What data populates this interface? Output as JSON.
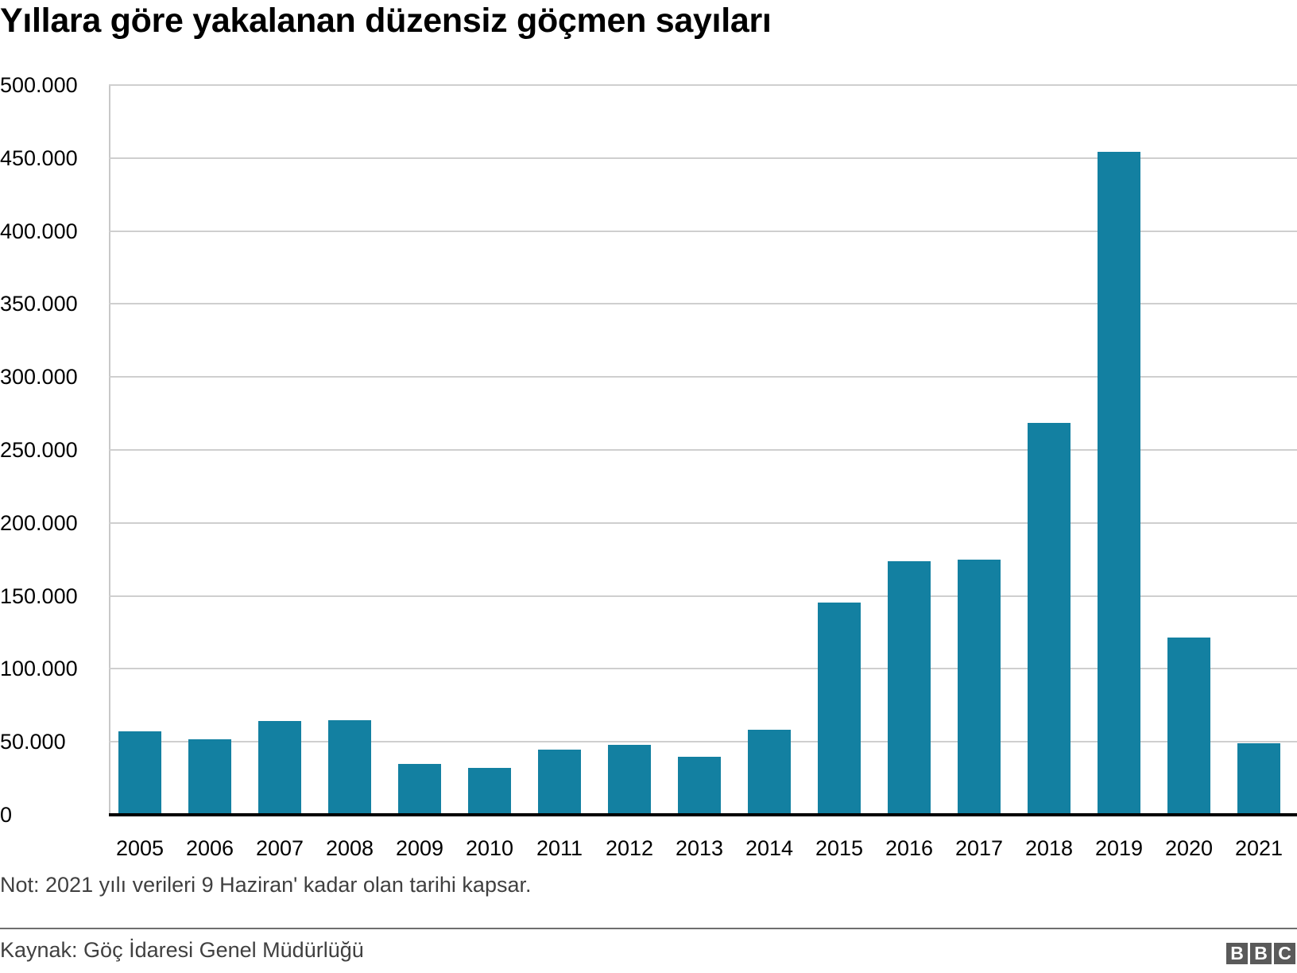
{
  "title": "Yıllara göre yakalanan düzensiz göçmen sayıları",
  "note": "Not: 2021 yılı verileri 9 Haziran' kadar olan tarihi kapsar.",
  "source": "Kaynak: Göç İdaresi Genel Müdürlüğü",
  "logo": {
    "letters": [
      "B",
      "B",
      "C"
    ],
    "name": "BBC"
  },
  "colors": {
    "bar": "#1380a1",
    "grid": "#cfcfcf",
    "axis": "#000000",
    "text_muted": "#404040"
  },
  "y_ticks": [
    "500.000",
    "450.000",
    "400.000",
    "350.000",
    "300.000",
    "250.000",
    "200.000",
    "150.000",
    "100.000",
    "50.000",
    "0"
  ],
  "chart_data": {
    "type": "bar",
    "title": "Yıllara göre yakalanan düzensiz göçmen sayıları",
    "xlabel": "",
    "ylabel": "",
    "ylim": [
      0,
      500000
    ],
    "grid": true,
    "legend": null,
    "categories": [
      "2005",
      "2006",
      "2007",
      "2008",
      "2009",
      "2010",
      "2011",
      "2012",
      "2013",
      "2014",
      "2015",
      "2016",
      "2017",
      "2018",
      "2019",
      "2020",
      "2021"
    ],
    "values": [
      57400,
      52000,
      64000,
      65000,
      34600,
      32400,
      44400,
      47700,
      40000,
      58500,
      145500,
      173700,
      175000,
      268300,
      454300,
      121600,
      48750
    ],
    "annotations": [
      "Not: 2021 yılı verileri 9 Haziran' kadar olan tarihi kapsar."
    ],
    "source": "Kaynak: Göç İdaresi Genel Müdürlüğü"
  }
}
